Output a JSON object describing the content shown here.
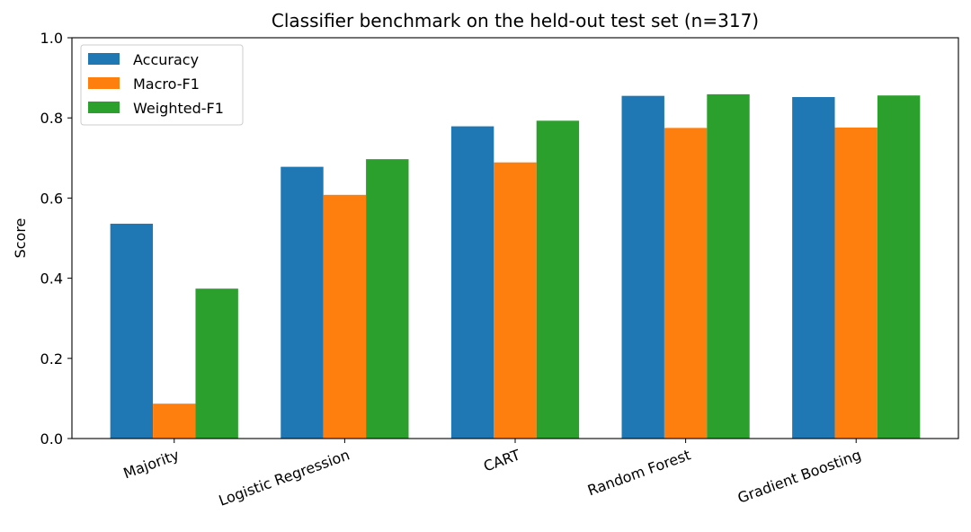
{
  "chart_data": {
    "type": "bar",
    "title": "Classifier benchmark on the held-out test set (n=317)",
    "xlabel": "",
    "ylabel": "Score",
    "ylim": [
      0,
      1.0
    ],
    "yticks": [
      "0.0",
      "0.2",
      "0.4",
      "0.6",
      "0.8",
      "1.0"
    ],
    "ytick_values": [
      0,
      0.2,
      0.4,
      0.6,
      0.8,
      1.0
    ],
    "categories": [
      "Majority",
      "Logistic Regression",
      "CART",
      "Random Forest",
      "Gradient Boosting"
    ],
    "series": [
      {
        "name": "Accuracy",
        "color": "#1f77b4",
        "values": [
          0.536,
          0.678,
          0.779,
          0.855,
          0.852
        ]
      },
      {
        "name": "Macro-F1",
        "color": "#ff7f0e",
        "values": [
          0.087,
          0.608,
          0.689,
          0.775,
          0.776
        ]
      },
      {
        "name": "Weighted-F1",
        "color": "#2ca02c",
        "values": [
          0.374,
          0.697,
          0.793,
          0.859,
          0.856
        ]
      }
    ],
    "grid": false,
    "legend_position": "top-left",
    "xtick_rotation": 20
  }
}
